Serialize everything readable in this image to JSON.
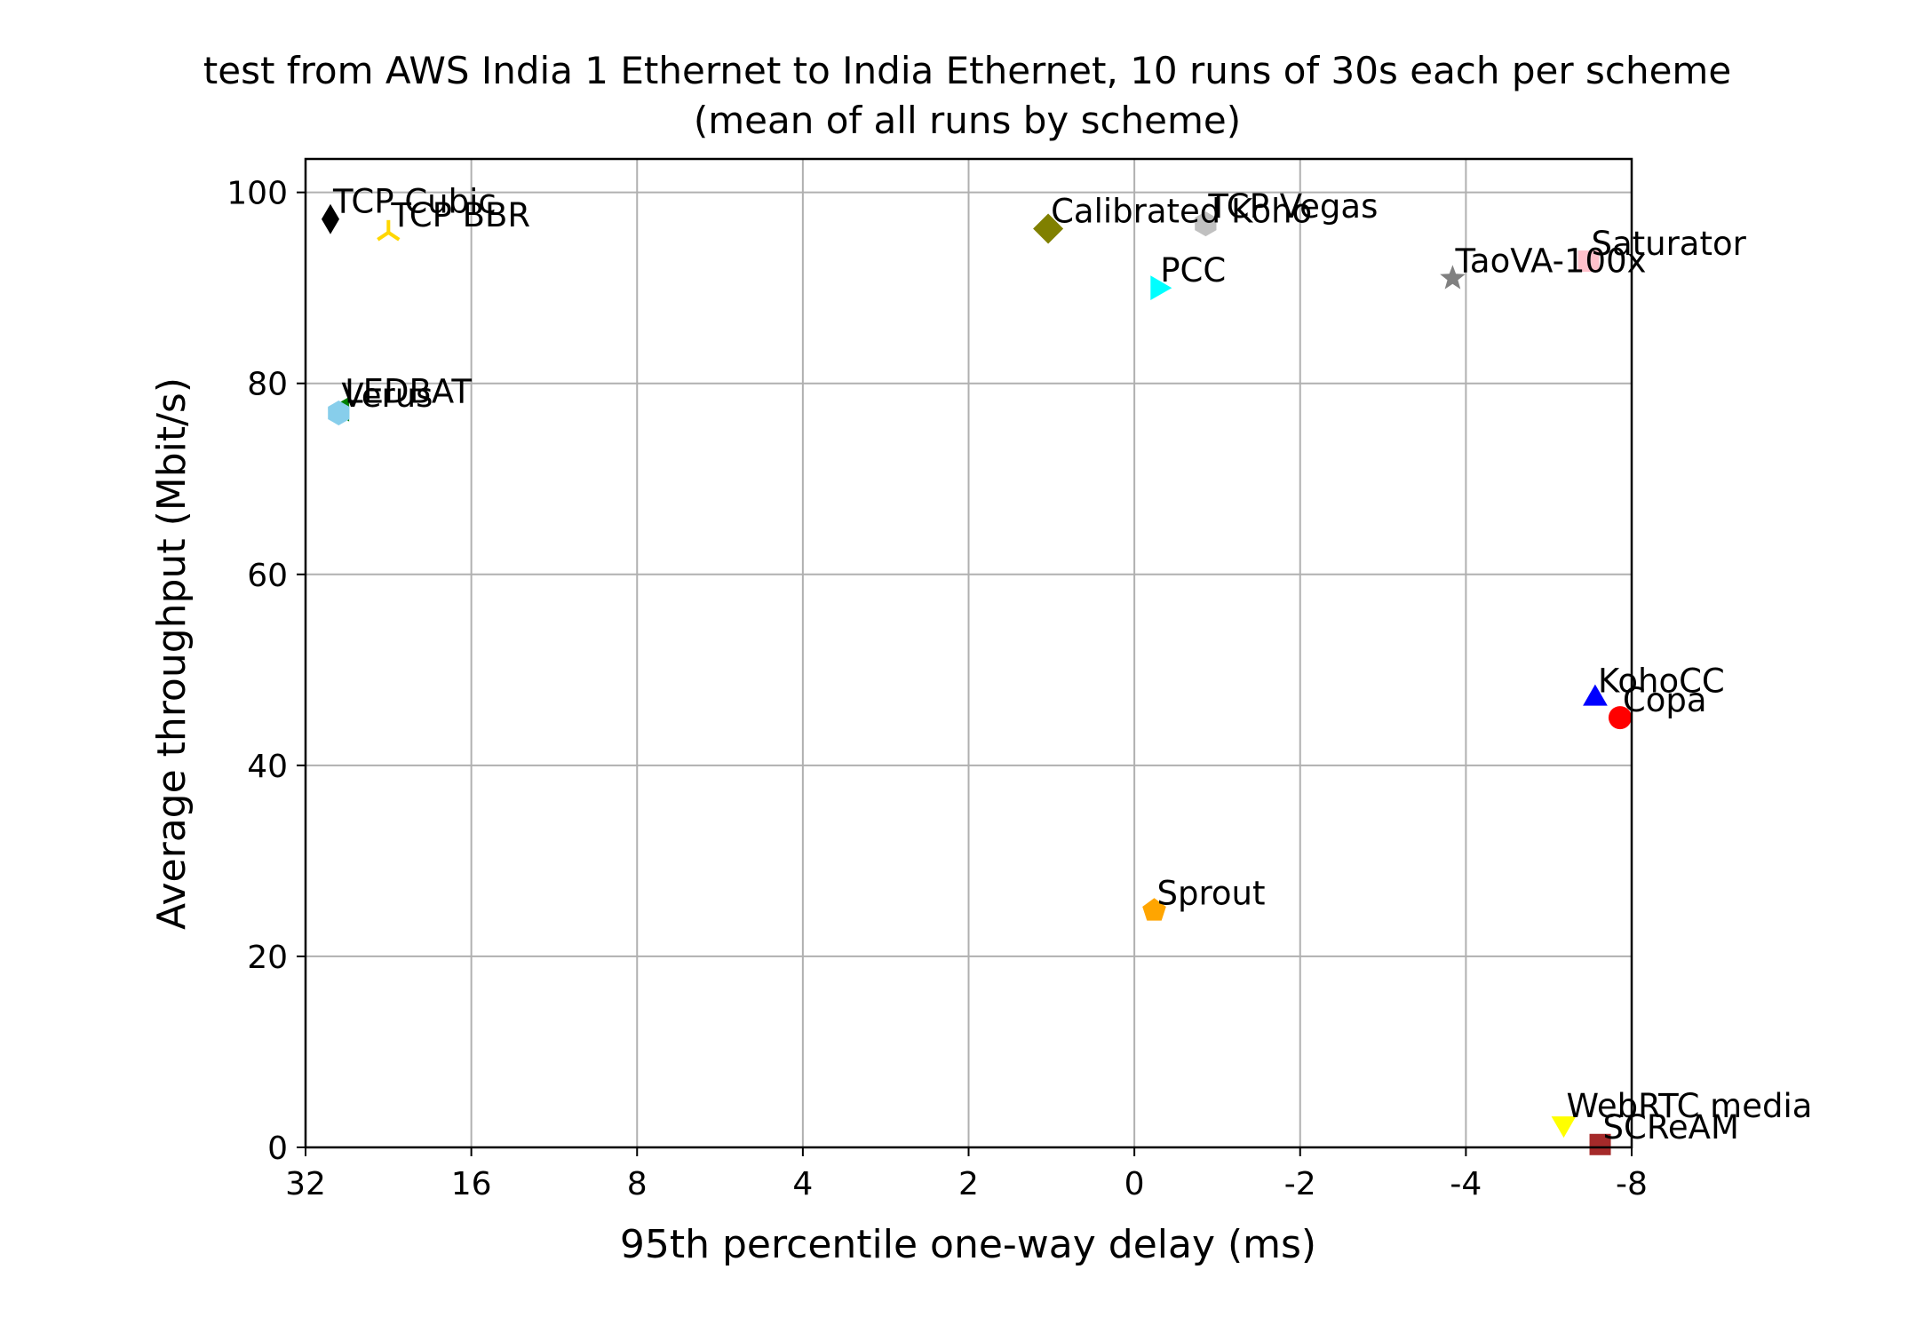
{
  "chart_data": {
    "type": "scatter",
    "title": "test from AWS India 1 Ethernet to India Ethernet, 10 runs of 30s each per scheme",
    "subtitle": "(mean of all runs by scheme)",
    "xlabel": "95th percentile one-way delay (ms)",
    "ylabel": "Average throughput (Mbit/s)",
    "x_scale": "custom-log-like (ticks evenly spaced, inverted)",
    "x_ticks": [
      "32",
      "16",
      "8",
      "4",
      "2",
      "0",
      "-2",
      "-4",
      "-8"
    ],
    "y_ticks": [
      0,
      20,
      40,
      60,
      80,
      100
    ],
    "ylim": [
      0,
      103.5
    ],
    "grid": true,
    "series": [
      {
        "name": "TCP Cubic",
        "x_tick_pos": 0.15,
        "y": 97.2,
        "color": "#000000",
        "marker": "thin-diamond"
      },
      {
        "name": "TCP BBR",
        "x_tick_pos": 0.5,
        "y": 95.8,
        "color": "#ffd700",
        "marker": "tri-down"
      },
      {
        "name": "Calibrated Koho",
        "x_tick_pos": 4.48,
        "y": 96.2,
        "color": "#808000",
        "marker": "diamond"
      },
      {
        "name": "TCP Vegas",
        "x_tick_pos": 5.43,
        "y": 96.7,
        "color": "#c0c0c0",
        "marker": "hexagon"
      },
      {
        "name": "PCC",
        "x_tick_pos": 5.14,
        "y": 90.0,
        "color": "#00ffff",
        "marker": "triangle-right"
      },
      {
        "name": "TaoVA-100x",
        "x_tick_pos": 6.92,
        "y": 91.0,
        "color": "#808080",
        "marker": "star"
      },
      {
        "name": "Saturator",
        "x_tick_pos": 7.74,
        "y": 92.8,
        "color": "#ffc0cb",
        "marker": "square"
      },
      {
        "name": "LEDBAT",
        "x_tick_pos": 0.22,
        "y": 77.3,
        "color": "#008000",
        "marker": "triangle-left"
      },
      {
        "name": "Verus",
        "x_tick_pos": 0.2,
        "y": 76.9,
        "color": "#87ceeb",
        "marker": "hexagon"
      },
      {
        "name": "KohoCC",
        "x_tick_pos": 7.78,
        "y": 47.0,
        "color": "#0000ff",
        "marker": "triangle-up"
      },
      {
        "name": "Copa",
        "x_tick_pos": 7.93,
        "y": 45.0,
        "color": "#ff0000",
        "marker": "circle"
      },
      {
        "name": "Sprout",
        "x_tick_pos": 5.12,
        "y": 24.8,
        "color": "#ffa500",
        "marker": "pentagon"
      },
      {
        "name": "WebRTC media",
        "x_tick_pos": 7.59,
        "y": 2.5,
        "color": "#ffff00",
        "marker": "triangle-down"
      },
      {
        "name": "SCReAM",
        "x_tick_pos": 7.81,
        "y": 0.3,
        "color": "#a52a2a",
        "marker": "square"
      }
    ]
  }
}
